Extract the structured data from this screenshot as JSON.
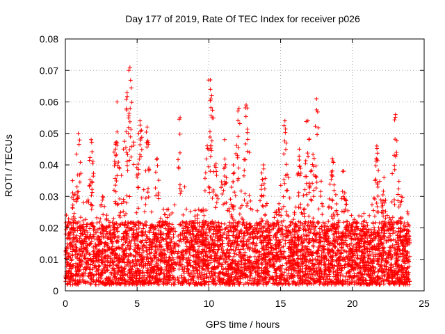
{
  "chart_data": {
    "type": "scatter",
    "title": "Day 177 of 2019, Rate Of TEC Index for receiver p026",
    "xlabel": "GPS time / hours",
    "ylabel": "ROTI / TECUs",
    "xlim": [
      0,
      25
    ],
    "ylim": [
      0,
      0.08
    ],
    "x_ticks": [
      0,
      5,
      10,
      15,
      20,
      25
    ],
    "x_tick_labels": [
      "0",
      "5",
      "10",
      "15",
      "20",
      "25"
    ],
    "y_ticks": [
      0,
      0.01,
      0.02,
      0.03,
      0.04,
      0.05,
      0.06,
      0.07,
      0.08
    ],
    "y_tick_labels": [
      "0",
      "0.01",
      "0.02",
      "0.03",
      "0.04",
      "0.05",
      "0.06",
      "0.07",
      "0.08"
    ],
    "grid": true,
    "marker": "+",
    "color": "#ff0000",
    "series": [
      {
        "name": "ROTI",
        "x_range": [
          0,
          24
        ],
        "typical_band": [
          0.002,
          0.022
        ],
        "peaks": [
          {
            "x": 0.5,
            "y": 0.035
          },
          {
            "x": 0.9,
            "y": 0.05
          },
          {
            "x": 1.8,
            "y": 0.048
          },
          {
            "x": 2.6,
            "y": 0.03
          },
          {
            "x": 3.5,
            "y": 0.047
          },
          {
            "x": 3.6,
            "y": 0.06
          },
          {
            "x": 4.3,
            "y": 0.063
          },
          {
            "x": 4.5,
            "y": 0.071
          },
          {
            "x": 5.2,
            "y": 0.054
          },
          {
            "x": 5.7,
            "y": 0.052
          },
          {
            "x": 6.4,
            "y": 0.042
          },
          {
            "x": 8.0,
            "y": 0.055
          },
          {
            "x": 10.1,
            "y": 0.067
          },
          {
            "x": 10.2,
            "y": 0.062
          },
          {
            "x": 11.1,
            "y": 0.048
          },
          {
            "x": 11.7,
            "y": 0.04
          },
          {
            "x": 12.1,
            "y": 0.058
          },
          {
            "x": 12.6,
            "y": 0.059
          },
          {
            "x": 13.8,
            "y": 0.04
          },
          {
            "x": 15.3,
            "y": 0.054
          },
          {
            "x": 16.3,
            "y": 0.045
          },
          {
            "x": 16.9,
            "y": 0.054
          },
          {
            "x": 17.5,
            "y": 0.061
          },
          {
            "x": 18.6,
            "y": 0.042
          },
          {
            "x": 19.4,
            "y": 0.038
          },
          {
            "x": 21.7,
            "y": 0.046
          },
          {
            "x": 22.2,
            "y": 0.036
          },
          {
            "x": 23.0,
            "y": 0.056
          },
          {
            "x": 23.4,
            "y": 0.03
          }
        ]
      }
    ]
  }
}
